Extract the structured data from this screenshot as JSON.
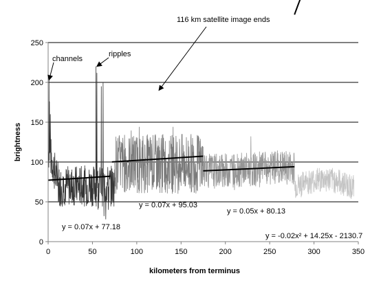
{
  "chart_data": {
    "type": "line",
    "title": "",
    "xlabel": "kilometers from terminus",
    "ylabel": "brightness",
    "xlim": [
      0,
      350
    ],
    "ylim": [
      0,
      250
    ],
    "xticks": [
      0,
      50,
      100,
      150,
      200,
      250,
      300,
      350
    ],
    "yticks": [
      0,
      50,
      100,
      150,
      200,
      250
    ],
    "grid": "horizontal",
    "legend": "none",
    "series": [
      {
        "range": [
          0,
          75
        ],
        "color": "#333333"
      },
      {
        "range": [
          75,
          175
        ],
        "color": "#7a7a7a"
      },
      {
        "range": [
          175,
          278
        ],
        "color": "#959595"
      },
      {
        "range": [
          278,
          345
        ],
        "color": "#c4c4c4"
      }
    ],
    "trendlines": [
      {
        "kind": "linear",
        "x": [
          0,
          70
        ],
        "slope": 0.07,
        "intercept": 77.18,
        "label": "y = 0.07x + 77.18"
      },
      {
        "kind": "linear",
        "x": [
          72,
          175
        ],
        "slope": 0.07,
        "intercept": 95.03,
        "label": "y = 0.07x + 95.03"
      },
      {
        "kind": "linear",
        "x": [
          175,
          278
        ],
        "slope": 0.05,
        "intercept": 80.13,
        "label": "y = 0.05x + 80.13"
      },
      {
        "kind": "poly2",
        "x": [
          278,
          345
        ],
        "a": -0.02,
        "b": 14.25,
        "c": -2130.7,
        "label": "y = -0.02x² + 14.25x - 2130.7"
      }
    ],
    "annotations": [
      {
        "text": "channels",
        "target": [
          1,
          203
        ]
      },
      {
        "text": "ripples",
        "target": [
          55,
          220
        ]
      },
      {
        "text": "116 km satellite image ends",
        "target": [
          125,
          190
        ]
      }
    ],
    "axis_color": "#808080",
    "gridline_color": "#000000",
    "trendline_color": "#000000"
  }
}
